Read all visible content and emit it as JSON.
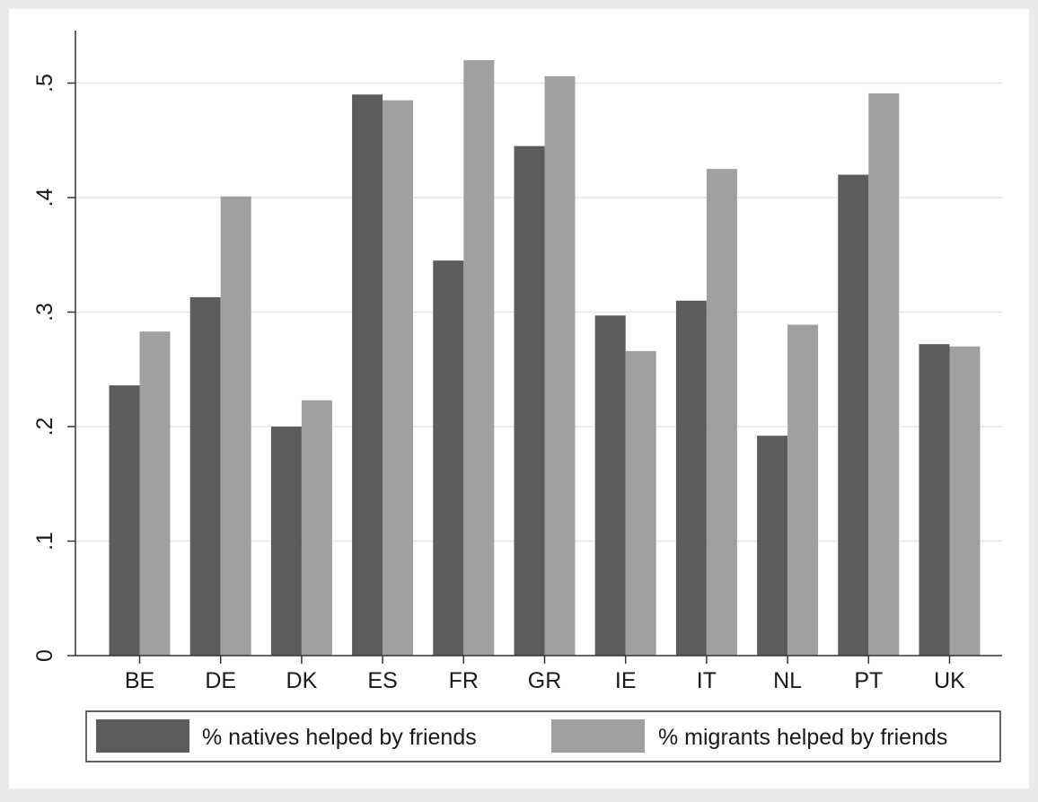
{
  "chart_data": {
    "type": "bar",
    "categories": [
      "BE",
      "DE",
      "DK",
      "ES",
      "FR",
      "GR",
      "IE",
      "IT",
      "NL",
      "PT",
      "UK"
    ],
    "series": [
      {
        "name": "% natives helped by friends",
        "color": "#5c5c5c",
        "values": [
          0.236,
          0.313,
          0.2,
          0.49,
          0.345,
          0.445,
          0.297,
          0.31,
          0.192,
          0.42,
          0.272
        ]
      },
      {
        "name": "% migrants helped by friends",
        "color": "#a0a0a0",
        "values": [
          0.283,
          0.401,
          0.223,
          0.485,
          0.52,
          0.506,
          0.266,
          0.425,
          0.289,
          0.491,
          0.27
        ]
      }
    ],
    "yticks": [
      0,
      0.1,
      0.2,
      0.3,
      0.4,
      0.5
    ],
    "ytick_labels": [
      "0",
      ".1",
      ".2",
      ".3",
      ".4",
      ".5"
    ],
    "ylim": [
      0,
      0.545
    ],
    "grid": true,
    "legend_position": "bottom",
    "xlabel": "",
    "ylabel": ""
  }
}
